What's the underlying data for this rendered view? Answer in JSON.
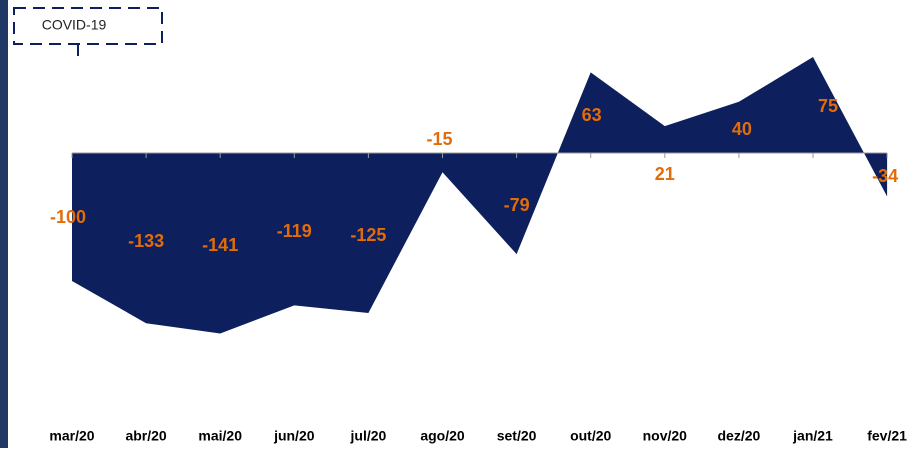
{
  "chart_data": {
    "type": "area",
    "annotation": "COVID-19",
    "categories": [
      "mar/20",
      "abr/20",
      "mai/20",
      "jun/20",
      "jul/20",
      "ago/20",
      "set/20",
      "out/20",
      "nov/20",
      "dez/20",
      "jan/21",
      "fev/21"
    ],
    "values": [
      -100,
      -133,
      -141,
      -119,
      -125,
      -15,
      -79,
      63,
      21,
      40,
      75,
      -34
    ],
    "color": "#0d1f5c",
    "label_color": "#e36c0a"
  }
}
